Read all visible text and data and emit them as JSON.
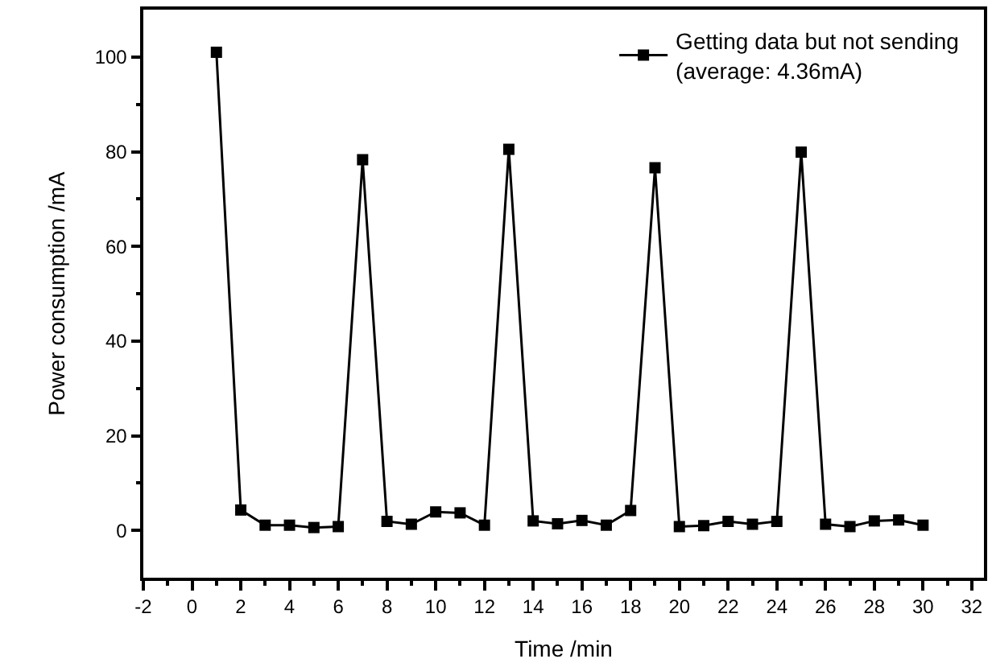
{
  "chart_data": {
    "type": "line",
    "xlabel": "Time /min",
    "ylabel": "Power consumption /mA",
    "x": [
      1,
      2,
      3,
      4,
      5,
      6,
      7,
      8,
      9,
      10,
      11,
      12,
      13,
      14,
      15,
      16,
      17,
      18,
      19,
      20,
      21,
      22,
      23,
      24,
      25,
      26,
      27,
      28,
      29,
      30
    ],
    "series": [
      {
        "name": "Getting data but not sending\n(average: 4.36mA)",
        "color": "#000000",
        "values": [
          101,
          4.3,
          1.1,
          1.1,
          0.6,
          0.8,
          78.3,
          1.9,
          1.3,
          3.9,
          3.7,
          1.1,
          80.5,
          2.0,
          1.4,
          2.1,
          1.1,
          4.2,
          76.6,
          0.8,
          1.0,
          1.9,
          1.3,
          1.9,
          79.9,
          1.3,
          0.8,
          2.0,
          2.2,
          1.1
        ]
      }
    ],
    "xlim": [
      -2,
      32.5
    ],
    "xticks": [
      -2,
      0,
      2,
      4,
      6,
      8,
      10,
      12,
      14,
      16,
      18,
      20,
      22,
      24,
      26,
      28,
      30,
      32
    ],
    "ylim": [
      -10,
      110
    ],
    "yticks": [
      0,
      20,
      40,
      60,
      80,
      100
    ],
    "marker": "square",
    "line_style": "solid",
    "legend": "top right",
    "grid": false
  }
}
